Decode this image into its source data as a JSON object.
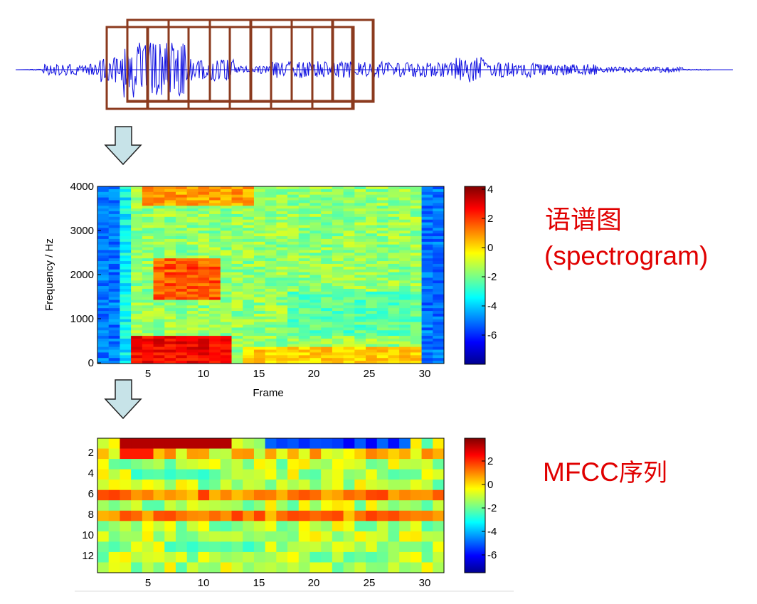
{
  "spectrogram": {
    "ylabel": "Frequency / Hz",
    "xlabel": "Frame",
    "yticks": [
      "0",
      "1000",
      "2000",
      "3000",
      "4000"
    ],
    "xticks": [
      "5",
      "10",
      "15",
      "20",
      "25",
      "30"
    ],
    "colorbar_ticks": [
      "4",
      "2",
      "0",
      "-2",
      "-4",
      "-6"
    ],
    "label_line1": "语谱图",
    "label_line2": "(spectrogram)"
  },
  "mfcc": {
    "yticks": [
      "2",
      "4",
      "6",
      "8",
      "10",
      "12"
    ],
    "xticks": [
      "5",
      "10",
      "15",
      "20",
      "25",
      "30"
    ],
    "colorbar_ticks": [
      "2",
      "0",
      "-2",
      "-4",
      "-6"
    ],
    "label_latin": "MFCC",
    "label_cjk": "序列"
  },
  "colors": {
    "waveform": "#1010e0",
    "frame_box": "#8b3a1e",
    "arrow_fill": "#c7e3e8",
    "label": "#e00000"
  },
  "chart_data": [
    {
      "type": "heatmap",
      "name": "spectrogram",
      "xlabel": "Frame",
      "ylabel": "Frequency / Hz",
      "xlim": [
        0.5,
        31.5
      ],
      "ylim": [
        0,
        4000
      ],
      "clim": [
        -8,
        4
      ],
      "colormap": "jet",
      "frames": 31
    },
    {
      "type": "heatmap",
      "name": "mfcc",
      "xlabel": "",
      "ylabel": "",
      "xlim": [
        0.5,
        31.5
      ],
      "ylim": [
        0.5,
        13.5
      ],
      "clim": [
        -8,
        4
      ],
      "colormap": "jet",
      "frames": 31,
      "coefficients": 13
    }
  ]
}
